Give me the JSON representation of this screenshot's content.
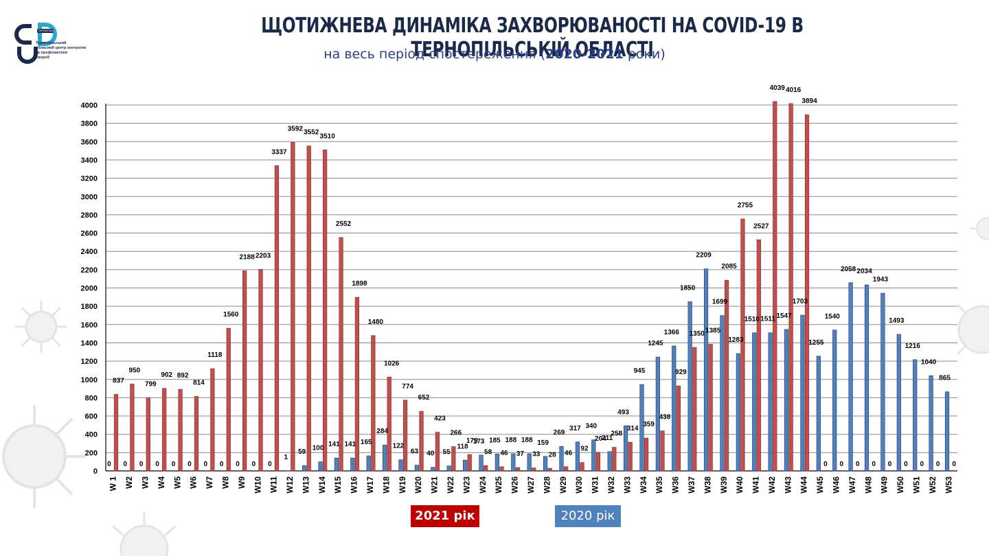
{
  "header": {
    "title": "ЩОТИЖНЕВА ДИНАМІКА ЗАХВОРЮВАНОСТІ НА COVID-19 В ТЕРНОПІЛЬСЬКІЙ ОБЛАСТІ",
    "subtitle_prefix": "на весь період спостереження (",
    "subtitle_years": "2020-2021",
    "subtitle_suffix": " роки)"
  },
  "logo": {
    "line1": "Тернопільський",
    "line2": "обласний центр контролю",
    "line3": "та профілактики",
    "line4": "хвороб",
    "badge": "ТЕРНОПІЛЬ"
  },
  "legend": {
    "label_2021": "2021 рік",
    "label_2020": "2020 рік"
  },
  "colors": {
    "series_2021": "#c0504d",
    "series_2020": "#4f81bd",
    "legend_2021_bg": "#c00000",
    "title": "#1a2a4a",
    "subtitle": "#2a3d8f"
  },
  "chart_data": {
    "type": "bar",
    "title": "Щотижнева динаміка захворюваності на COVID-19 в Тернопільській області",
    "ylim": [
      0,
      4000
    ],
    "yticks": [
      0,
      200,
      400,
      600,
      800,
      1000,
      1200,
      1400,
      1600,
      1800,
      2000,
      2200,
      2400,
      2600,
      2800,
      3000,
      3200,
      3400,
      3600,
      3800,
      4000
    ],
    "grid": true,
    "categories": [
      "W 1",
      "W2",
      "W3",
      "W4",
      "W5",
      "W6",
      "W7",
      "W8",
      "W9",
      "W10",
      "W11",
      "W12",
      "W13",
      "W14",
      "W15",
      "W16",
      "W17",
      "W18",
      "W19",
      "W20",
      "W21",
      "W22",
      "W23",
      "W24",
      "W25",
      "W26",
      "W27",
      "W28",
      "W29",
      "W30",
      "W31",
      "W32",
      "W33",
      "W34",
      "W35",
      "W36",
      "W37",
      "W38",
      "W39",
      "W40",
      "W41",
      "W42",
      "W43",
      "W44",
      "W45",
      "W46",
      "W47",
      "W48",
      "W49",
      "W50",
      "W51",
      "W52",
      "W53"
    ],
    "series": [
      {
        "name": "2020 рік",
        "values": [
          0,
          0,
          0,
          0,
          0,
          0,
          0,
          0,
          0,
          0,
          0,
          1,
          59,
          100,
          141,
          141,
          165,
          284,
          122,
          63,
          40,
          55,
          118,
          173,
          185,
          188,
          188,
          159,
          269,
          317,
          340,
          211,
          493,
          945,
          1245,
          1366,
          1850,
          2209,
          1699,
          1283,
          1510,
          1511,
          1547,
          1703,
          1255,
          1540,
          2058,
          2034,
          1943,
          1493,
          1216,
          1040,
          865
        ],
        "labels": [
          "0",
          "0",
          "0",
          "0",
          "0",
          "0",
          "0",
          "0",
          "0",
          "0",
          "0",
          "1",
          "59",
          "100",
          "141",
          "141",
          "165",
          "284",
          "122",
          "63",
          "40",
          "55",
          "118",
          "173",
          "185",
          "188",
          "188",
          "159",
          "269",
          "317",
          "340",
          "211",
          "493",
          "945",
          "1245",
          "1366",
          "1850",
          "2209",
          "1699",
          "1283",
          "1510",
          "1511",
          "1547",
          "1703",
          "1255",
          "1540",
          "2058",
          "2034",
          "1943",
          "1493",
          "1216",
          "1040",
          "865"
        ]
      },
      {
        "name": "2021 рік",
        "values": [
          837,
          950,
          799,
          902,
          892,
          814,
          1118,
          1560,
          2188,
          2203,
          3337,
          3592,
          3552,
          3510,
          2552,
          1898,
          1480,
          1026,
          774,
          652,
          423,
          266,
          179,
          58,
          46,
          37,
          33,
          28,
          46,
          92,
          204,
          258,
          314,
          359,
          438,
          929,
          1350,
          1385,
          2085,
          2755,
          2527,
          4039,
          4016,
          3894,
          0,
          0,
          0,
          0,
          0,
          0,
          0,
          0,
          0
        ],
        "labels": [
          "837",
          "950",
          "799",
          "902",
          "892",
          "814",
          "1118",
          "1560",
          "2188",
          "2203",
          "3337",
          "3592",
          "3552",
          "3510",
          "2552",
          "1898",
          "1480",
          "1026",
          "774",
          "652",
          "423",
          "266",
          "179",
          "58",
          "46",
          "37",
          "33",
          "28",
          "46",
          "92",
          "204",
          "258",
          "314",
          "359",
          "438",
          "929",
          "1350",
          "1385",
          "2085",
          "2755",
          "2527",
          "4039",
          "4016",
          "3894",
          "0",
          "0",
          "0",
          "0",
          "0",
          "0",
          "0",
          "0",
          "0"
        ]
      }
    ]
  }
}
